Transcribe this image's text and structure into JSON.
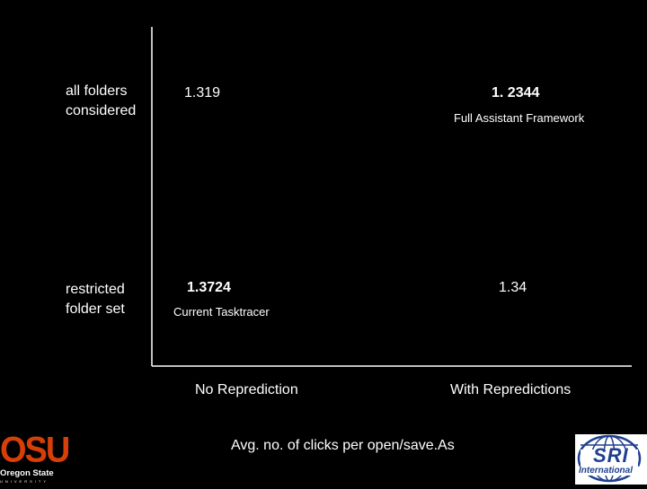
{
  "chart_data": {
    "type": "table",
    "title": "",
    "caption": "Avg. no. of clicks per open/save.As",
    "columns": [
      "No Reprediction",
      "With Repredictions"
    ],
    "rows": [
      {
        "label": "all folders considered",
        "label_lines": [
          "all folders",
          "considered"
        ],
        "cells": [
          {
            "value": "1.319",
            "bold": false,
            "note": ""
          },
          {
            "value": "1. 2344",
            "bold": true,
            "note": "Full Assistant Framework"
          }
        ]
      },
      {
        "label": "restricted folder set",
        "label_lines": [
          "restricted",
          "folder set"
        ],
        "cells": [
          {
            "value": "1.3724",
            "bold": true,
            "note": "Current Tasktracer"
          },
          {
            "value": "1.34",
            "bold": false,
            "note": ""
          }
        ]
      }
    ]
  },
  "logos": {
    "osu": {
      "mark": "OSU",
      "name": "Oregon State",
      "sub": "UNIVERSITY",
      "color": "#d73f09"
    },
    "sri": {
      "mark": "SRI",
      "name": "International",
      "color": "#1f3f8f"
    }
  },
  "colors": {
    "background": "#000000",
    "text": "#ffffff",
    "axis": "#ffffff"
  }
}
